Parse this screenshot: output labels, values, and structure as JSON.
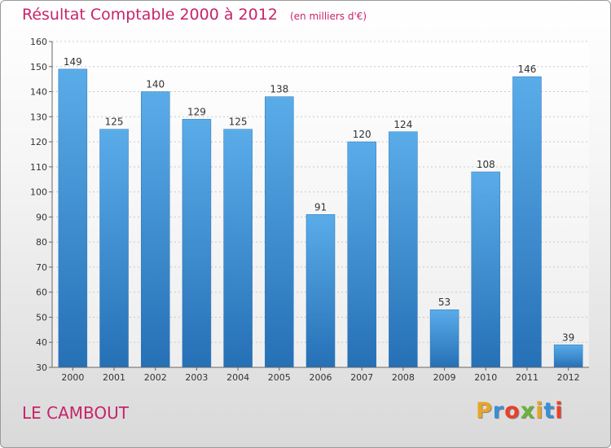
{
  "header": {
    "title": "Résultat Comptable 2000 à 2012",
    "unit": "(en milliers d'€)"
  },
  "footer": {
    "place": "LE CAMBOUT",
    "brand": "Proxiti",
    "brand_colors": [
      "#e8a526",
      "#3a8dd6",
      "#e8402a",
      "#6ab33a",
      "#e8a526",
      "#3a8dd6",
      "#e8402a"
    ]
  },
  "chart_data": {
    "type": "bar",
    "title": "Résultat Comptable 2000 à 2012",
    "categories": [
      "2000",
      "2001",
      "2002",
      "2003",
      "2004",
      "2005",
      "2006",
      "2007",
      "2008",
      "2009",
      "2010",
      "2011",
      "2012"
    ],
    "values": [
      149,
      125,
      140,
      129,
      125,
      138,
      91,
      120,
      124,
      53,
      108,
      146,
      39
    ],
    "ylim": [
      30,
      160
    ],
    "yticks": [
      30,
      40,
      50,
      60,
      70,
      80,
      90,
      100,
      110,
      120,
      130,
      140,
      150,
      160
    ],
    "grid": true,
    "bar_color": "#3d8fd6",
    "label_color": "#333333",
    "accent_color": "#c8236b"
  }
}
